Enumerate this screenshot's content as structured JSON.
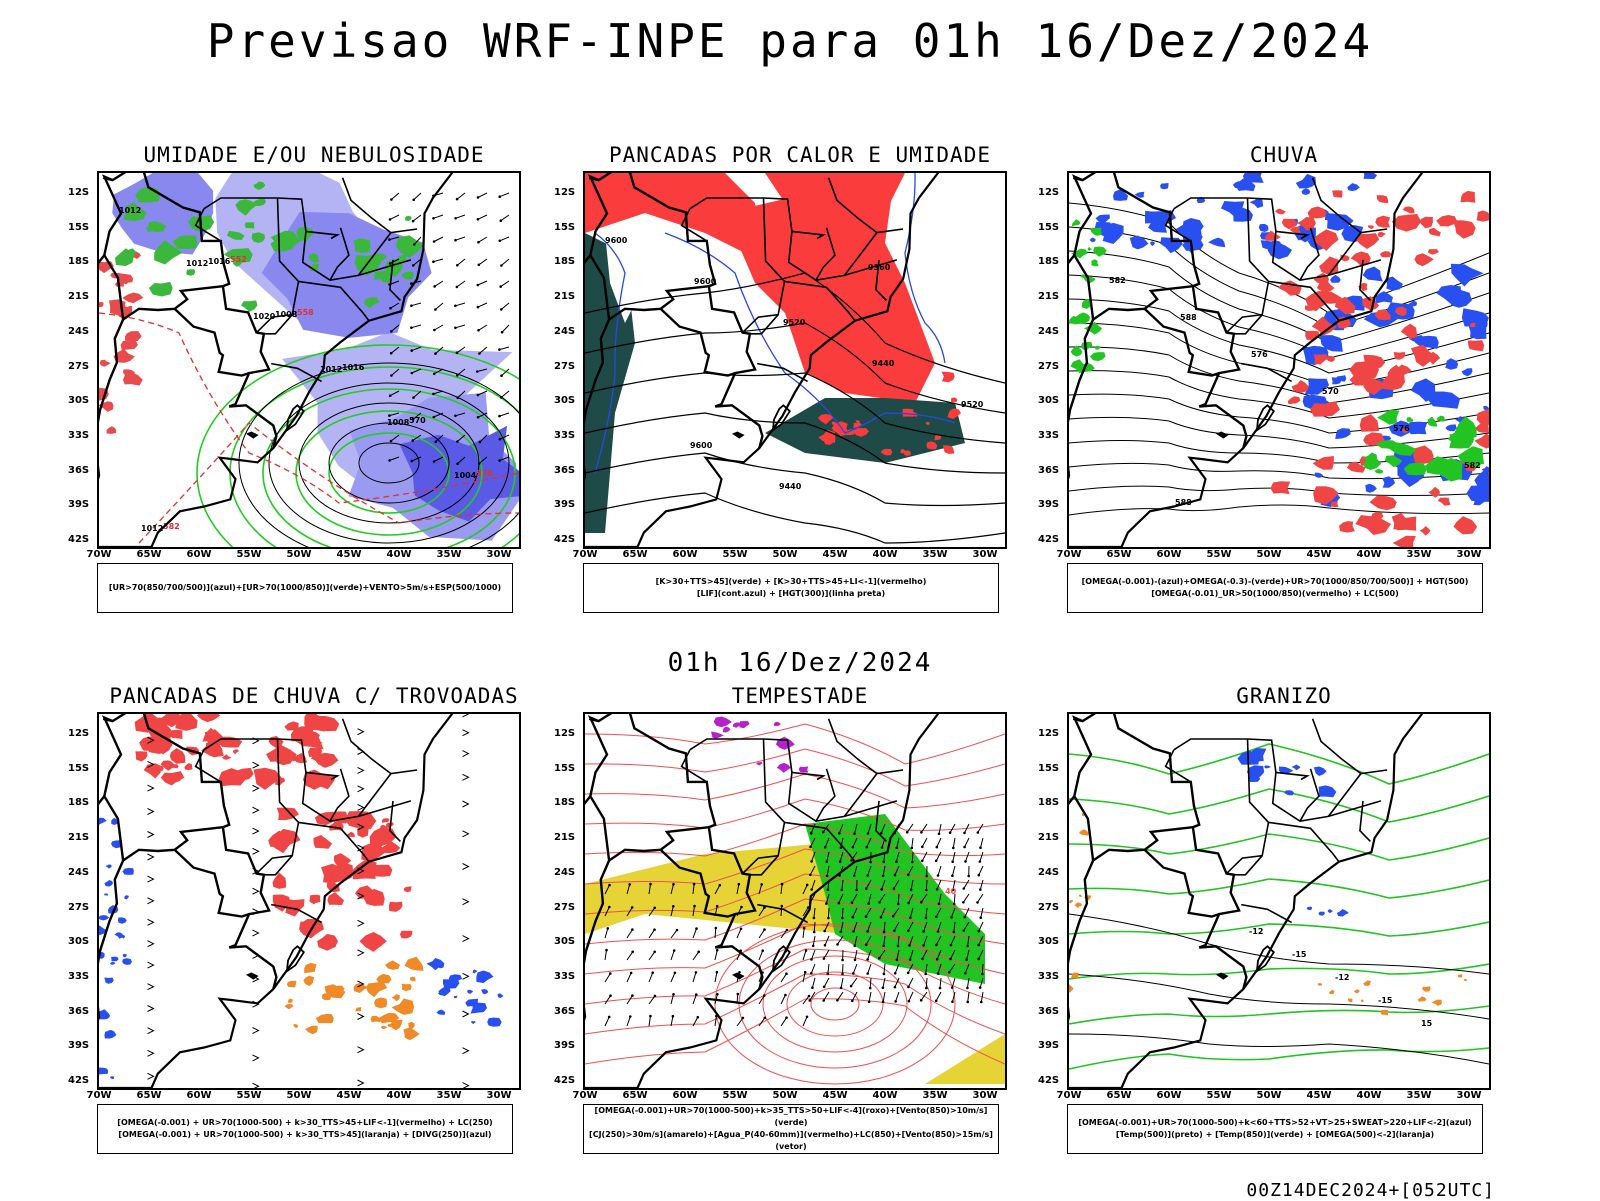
{
  "title": "Previsao WRF-INPE  para 01h 16/Dez/2024",
  "mid_title": "01h 16/Dez/2024",
  "footer": "00Z14DEC2024+[052UTC]",
  "lat_labels": [
    "12S",
    "15S",
    "18S",
    "21S",
    "24S",
    "27S",
    "30S",
    "33S",
    "36S",
    "39S",
    "42S"
  ],
  "lon_labels": [
    "70W",
    "65W",
    "60W",
    "55W",
    "50W",
    "45W",
    "40W",
    "35W",
    "30W"
  ],
  "panels": [
    {
      "title": "UMIDADE E/OU NEBULOSIDADE",
      "legend": [
        "[UR>70(850/700/500)](azul)+[UR>70(1000/850)](verde)+VENTO>5m/s+ESP(500/1000)"
      ],
      "contour_labels": [
        "1012",
        "1012",
        "1020",
        "1012",
        "1008",
        "1004",
        "1012",
        "1016",
        "1008",
        "1016",
        "570",
        "576",
        "582",
        "552",
        "558"
      ]
    },
    {
      "title": "PANCADAS POR CALOR E UMIDADE",
      "legend": [
        "[K>30+TTS>45](verde) + [K>30+TTS>45+LI<-1](vermelho)",
        "[LIF](cont.azul) + [HGT(300)](linha preta)"
      ],
      "contour_labels": [
        "9600",
        "9600",
        "9520",
        "9440",
        "9520",
        "9600",
        "9440",
        "9360"
      ]
    },
    {
      "title": "CHUVA",
      "legend": [
        "[OMEGA(-0.001)-(azul)+OMEGA(-0.3)-(verde)+UR>70(1000/850/700/500)] + HGT(500)",
        "[OMEGA(-0.01)_UR>50(1000/850)(vermelho) + LC(500)"
      ],
      "contour_labels": [
        "582",
        "588",
        "576",
        "570",
        "576",
        "582",
        "588"
      ]
    },
    {
      "title": "PANCADAS DE CHUVA C/ TROVOADAS",
      "legend": [
        "[OMEGA(-0.001) + UR>70(1000-500) + k>30_TTS>45+LIF<-1](vermelho) + LC(250)",
        "[OMEGA(-0.001) + UR>70(1000-500) + k>30_TTS>45](laranja) + [DIVG(250)](azul)"
      ],
      "contour_labels": []
    },
    {
      "title": "TEMPESTADE",
      "legend": [
        "[OMEGA(-0.001)+UR>70(1000-500)+k>35_TTS>50+LIF<-4](roxo)+[Vento(850)>10m/s](verde)",
        "[CJ(250)>30m/s](amarelo)+[Agua_P(40-60mm)](vermelho)+LC(850)+[Vento(850)>15m/s](vetor)"
      ],
      "contour_labels": [
        "40"
      ]
    },
    {
      "title": "GRANIZO",
      "legend": [
        "[OMEGA(-0.001)+UR>70(1000-500)+k<60+TTS>52+VT>25+SWEAT>220+LIF<-2](azul)",
        "[Temp(500)](preto) + [Temp(850)](verde) + [OMEGA(500)<-2](laranja)"
      ],
      "contour_labels": [
        "-12",
        "-15",
        "-12",
        "-15",
        "15"
      ]
    }
  ]
}
